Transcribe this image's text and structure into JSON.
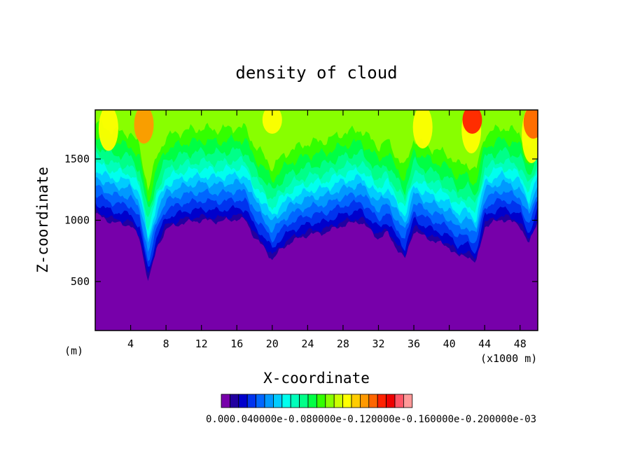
{
  "chart_data": {
    "type": "heatmap",
    "title": "density of cloud",
    "xlabel": "X-coordinate",
    "ylabel": "Z-coordinate",
    "x_unit_label": "(x1000 m)",
    "y_unit_label": "(m)",
    "xlim": [
      0,
      50
    ],
    "ylim": [
      100,
      1900
    ],
    "x_ticks": [
      "4",
      "8",
      "12",
      "16",
      "20",
      "24",
      "28",
      "32",
      "36",
      "40",
      "44",
      "48"
    ],
    "y_ticks": [
      "500",
      "1000",
      "1500"
    ],
    "colorbar": {
      "colors": [
        "#7700aa",
        "#2200a0",
        "#0000cc",
        "#0033ee",
        "#0066ff",
        "#0099ff",
        "#00ccff",
        "#00ffee",
        "#00ffbb",
        "#00ff88",
        "#00ff44",
        "#33ff00",
        "#88ff00",
        "#ccff00",
        "#ffff00",
        "#ffcc00",
        "#ff9900",
        "#ff6600",
        "#ff2200",
        "#ee0000",
        "#ff5566",
        "#ff9999"
      ],
      "label_text": "0.000.040000e-0.080000e-0.120000e-0.160000e-0.200000e-03"
    },
    "profile_x": [
      0,
      2,
      4,
      5,
      6,
      7,
      8,
      10,
      12,
      14,
      16,
      17,
      18,
      19,
      20,
      21,
      22,
      24,
      26,
      28,
      30,
      32,
      33,
      34,
      35,
      36,
      37,
      38,
      40,
      41,
      42,
      43,
      44,
      46,
      48,
      49,
      50
    ],
    "cloud_base_z": [
      1050,
      980,
      960,
      850,
      500,
      780,
      930,
      980,
      1000,
      990,
      1010,
      1000,
      860,
      780,
      680,
      760,
      820,
      880,
      900,
      960,
      990,
      850,
      900,
      780,
      680,
      920,
      870,
      840,
      780,
      700,
      720,
      640,
      950,
      1010,
      960,
      800,
      1000
    ],
    "shading": "banded contour: base (purple) at cloud-base, increasing upward through blue, cyan, green to yellow/orange near the top"
  }
}
